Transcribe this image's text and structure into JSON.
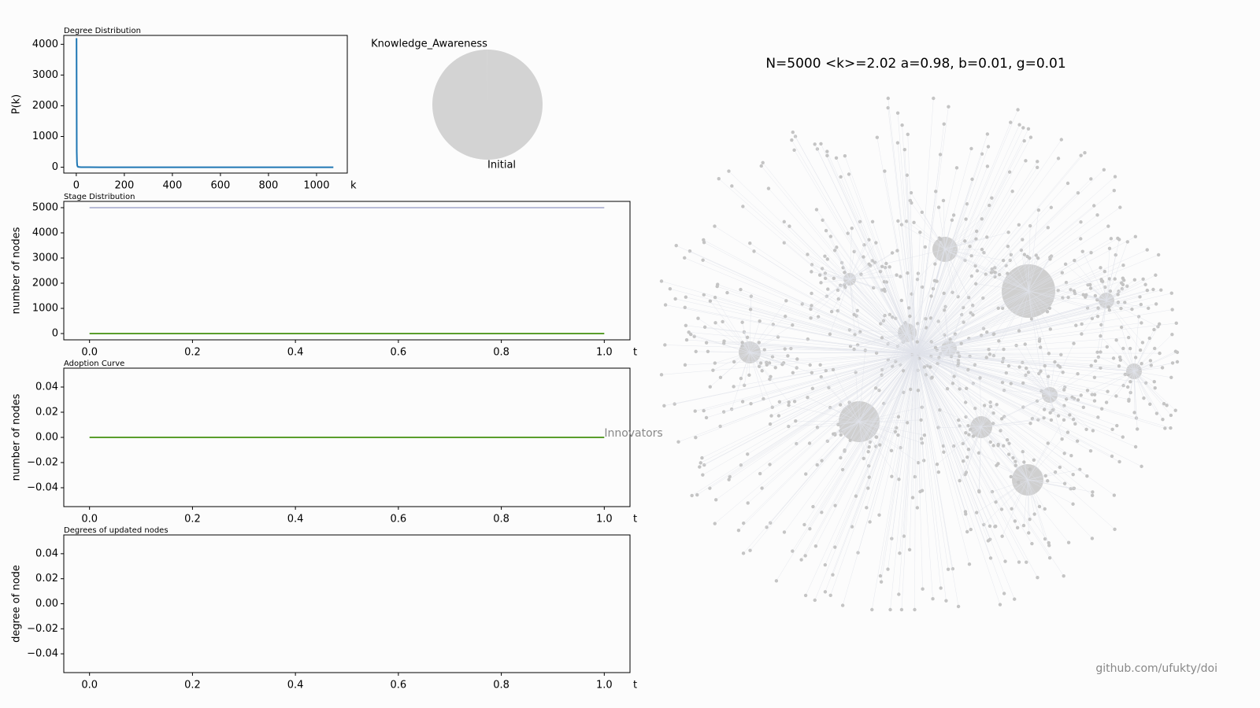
{
  "chart_data": [
    {
      "type": "line",
      "title": "Degree Distribution",
      "ylabel": "P(k)",
      "xlabel": "k",
      "x": [
        1,
        2,
        3,
        4,
        6,
        10,
        20,
        50,
        100,
        300,
        1070
      ],
      "series": [
        {
          "color": "#1f77b4",
          "values": [
            4200,
            500,
            150,
            60,
            20,
            8,
            3,
            1,
            0,
            0,
            0
          ]
        }
      ],
      "xlim": [
        -52,
        1128
      ],
      "xticks": [
        0,
        200,
        400,
        600,
        800,
        1000
      ],
      "ylim": [
        -190,
        4290
      ],
      "yticks": [
        0,
        1000,
        2000,
        3000,
        4000
      ]
    },
    {
      "type": "pie",
      "categories": [
        "Knowledge_Awareness",
        "Initial"
      ],
      "values": [
        1,
        4999
      ],
      "colors": [
        "#d3d3d3",
        "#d3d3d3"
      ],
      "startangle": 90
    },
    {
      "type": "line",
      "title": "Stage Distribution",
      "ylabel": "number of nodes",
      "xlabel": "t",
      "x": [
        0,
        1
      ],
      "series": [
        {
          "color": "#b8bcd8",
          "values": [
            5000,
            5000
          ]
        },
        {
          "color": "#5a9e2c",
          "values": [
            0,
            0
          ]
        }
      ],
      "xlim": [
        -0.05,
        1.05
      ],
      "xticks": [
        {
          "value": 0,
          "label": "0.0"
        },
        {
          "value": 0.2,
          "label": "0.2"
        },
        {
          "value": 0.4,
          "label": "0.4"
        },
        {
          "value": 0.6,
          "label": "0.6"
        },
        {
          "value": 0.8,
          "label": "0.8"
        },
        {
          "value": 1,
          "label": "1.0"
        }
      ],
      "ylim": [
        -250,
        5250
      ],
      "yticks": [
        0,
        1000,
        2000,
        3000,
        4000,
        5000
      ]
    },
    {
      "type": "line",
      "title": "Adoption Curve",
      "ylabel": "number of nodes",
      "xlabel": "t",
      "x": [
        0,
        1
      ],
      "series": [
        {
          "color": "#5a9e2c",
          "values": [
            0,
            0
          ]
        }
      ],
      "annotation": "Innovators",
      "xlim": [
        -0.05,
        1.05
      ],
      "xticks": [
        {
          "value": 0,
          "label": "0.0"
        },
        {
          "value": 0.2,
          "label": "0.2"
        },
        {
          "value": 0.4,
          "label": "0.4"
        },
        {
          "value": 0.6,
          "label": "0.6"
        },
        {
          "value": 0.8,
          "label": "0.8"
        },
        {
          "value": 1,
          "label": "1.0"
        }
      ],
      "ylim": [
        -0.055,
        0.055
      ],
      "yticks": [
        {
          "value": -0.04,
          "label": "−0.04"
        },
        {
          "value": -0.02,
          "label": "−0.02"
        },
        {
          "value": 0,
          "label": "0.00"
        },
        {
          "value": 0.02,
          "label": "0.02"
        },
        {
          "value": 0.04,
          "label": "0.04"
        }
      ]
    },
    {
      "type": "scatter",
      "title": "Degrees of updated nodes",
      "ylabel": "degree of node",
      "xlabel": "t",
      "x": [],
      "values": [],
      "xlim": [
        -0.05,
        1.05
      ],
      "xticks": [
        {
          "value": 0,
          "label": "0.0"
        },
        {
          "value": 0.2,
          "label": "0.2"
        },
        {
          "value": 0.4,
          "label": "0.4"
        },
        {
          "value": 0.6,
          "label": "0.6"
        },
        {
          "value": 0.8,
          "label": "0.8"
        },
        {
          "value": 1,
          "label": "1.0"
        }
      ],
      "ylim": [
        -0.055,
        0.055
      ],
      "yticks": [
        {
          "value": -0.04,
          "label": "−0.04"
        },
        {
          "value": -0.02,
          "label": "−0.02"
        },
        {
          "value": 0,
          "label": "0.00"
        },
        {
          "value": 0.02,
          "label": "0.02"
        },
        {
          "value": 0.04,
          "label": "0.04"
        }
      ]
    },
    {
      "type": "network",
      "title": "N=5000 <k>=2.02 a=0.98, b=0.01, g=0.01"
    }
  ],
  "footer": "github.com/ufukty/doi"
}
